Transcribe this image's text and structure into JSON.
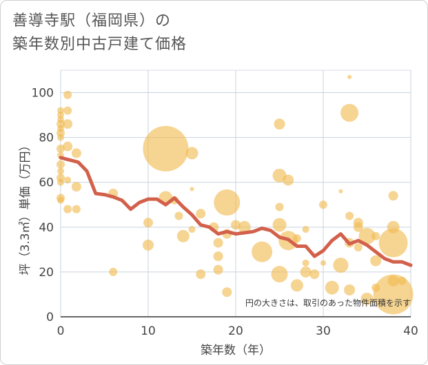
{
  "header": {
    "title_line1": "善導寺駅（福岡県）の",
    "title_line2": "築年数別中古戸建て価格"
  },
  "chart_data": {
    "type": "scatter",
    "title": "善導寺駅（福岡県）の築年数別中古戸建て価格",
    "xlabel": "築年数（年）",
    "ylabel": "坪（3.3㎡）単価（万円）",
    "xlim": [
      0,
      40
    ],
    "ylim": [
      0,
      110
    ],
    "xticks": [
      0,
      10,
      20,
      30,
      40
    ],
    "yticks": [
      0,
      20,
      40,
      60,
      80,
      100
    ],
    "grid": true,
    "annotation": "円の大きさは、取引のあった物件面積を示す",
    "colors": {
      "bubble": "#f1b94f",
      "trend": "#d2604b"
    },
    "bubbles": [
      {
        "x": 0,
        "y": 92,
        "s": 5
      },
      {
        "x": 0,
        "y": 90,
        "s": 5
      },
      {
        "x": 0,
        "y": 88,
        "s": 5
      },
      {
        "x": 0,
        "y": 86,
        "s": 6
      },
      {
        "x": 0,
        "y": 84,
        "s": 5
      },
      {
        "x": 0,
        "y": 82,
        "s": 6
      },
      {
        "x": 0,
        "y": 80,
        "s": 5
      },
      {
        "x": 0,
        "y": 75,
        "s": 6
      },
      {
        "x": 0,
        "y": 72,
        "s": 5
      },
      {
        "x": 0,
        "y": 68,
        "s": 6
      },
      {
        "x": 0,
        "y": 65,
        "s": 5
      },
      {
        "x": 0,
        "y": 62,
        "s": 6
      },
      {
        "x": 0,
        "y": 60,
        "s": 5
      },
      {
        "x": 0,
        "y": 53,
        "s": 6
      },
      {
        "x": 0,
        "y": 52,
        "s": 5
      },
      {
        "x": 0.8,
        "y": 99,
        "s": 6
      },
      {
        "x": 0.8,
        "y": 92,
        "s": 6
      },
      {
        "x": 0.8,
        "y": 86,
        "s": 7
      },
      {
        "x": 0.8,
        "y": 76,
        "s": 7
      },
      {
        "x": 0.8,
        "y": 61,
        "s": 5
      },
      {
        "x": 0.8,
        "y": 48,
        "s": 6
      },
      {
        "x": 1.8,
        "y": 73,
        "s": 7
      },
      {
        "x": 1.8,
        "y": 58,
        "s": 7
      },
      {
        "x": 1.8,
        "y": 48,
        "s": 6
      },
      {
        "x": 6,
        "y": 55,
        "s": 7
      },
      {
        "x": 6,
        "y": 20,
        "s": 6
      },
      {
        "x": 10,
        "y": 42,
        "s": 7
      },
      {
        "x": 10,
        "y": 32,
        "s": 8
      },
      {
        "x": 12,
        "y": 75,
        "s": 33
      },
      {
        "x": 12,
        "y": 53,
        "s": 10
      },
      {
        "x": 13,
        "y": 52,
        "s": 6
      },
      {
        "x": 13.5,
        "y": 45,
        "s": 6
      },
      {
        "x": 14,
        "y": 36,
        "s": 9
      },
      {
        "x": 15,
        "y": 73,
        "s": 9
      },
      {
        "x": 15,
        "y": 57,
        "s": 3
      },
      {
        "x": 15,
        "y": 39,
        "s": 5
      },
      {
        "x": 16,
        "y": 46,
        "s": 7
      },
      {
        "x": 16,
        "y": 19,
        "s": 7
      },
      {
        "x": 17.5,
        "y": 40,
        "s": 7
      },
      {
        "x": 18,
        "y": 33,
        "s": 7
      },
      {
        "x": 18,
        "y": 27,
        "s": 7
      },
      {
        "x": 18,
        "y": 21,
        "s": 7
      },
      {
        "x": 19,
        "y": 51,
        "s": 19
      },
      {
        "x": 19,
        "y": 37,
        "s": 7
      },
      {
        "x": 19,
        "y": 11,
        "s": 7
      },
      {
        "x": 20,
        "y": 41,
        "s": 7
      },
      {
        "x": 21,
        "y": 40,
        "s": 9
      },
      {
        "x": 23,
        "y": 29,
        "s": 15
      },
      {
        "x": 25,
        "y": 86,
        "s": 8
      },
      {
        "x": 25,
        "y": 63,
        "s": 10
      },
      {
        "x": 25,
        "y": 49,
        "s": 6
      },
      {
        "x": 25,
        "y": 41,
        "s": 10
      },
      {
        "x": 25,
        "y": 19,
        "s": 12
      },
      {
        "x": 26,
        "y": 61,
        "s": 8
      },
      {
        "x": 26,
        "y": 34,
        "s": 14
      },
      {
        "x": 27,
        "y": 35,
        "s": 6
      },
      {
        "x": 27,
        "y": 14,
        "s": 9
      },
      {
        "x": 28,
        "y": 39,
        "s": 5
      },
      {
        "x": 28,
        "y": 24,
        "s": 5
      },
      {
        "x": 28,
        "y": 20,
        "s": 8
      },
      {
        "x": 29,
        "y": 19,
        "s": 7
      },
      {
        "x": 30,
        "y": 50,
        "s": 6
      },
      {
        "x": 30,
        "y": 24,
        "s": 4
      },
      {
        "x": 31,
        "y": 13,
        "s": 10
      },
      {
        "x": 32,
        "y": 56,
        "s": 3
      },
      {
        "x": 32,
        "y": 23,
        "s": 11
      },
      {
        "x": 33,
        "y": 107,
        "s": 3
      },
      {
        "x": 33,
        "y": 91,
        "s": 13
      },
      {
        "x": 33,
        "y": 45,
        "s": 6
      },
      {
        "x": 33,
        "y": 33,
        "s": 7
      },
      {
        "x": 33,
        "y": 12,
        "s": 8
      },
      {
        "x": 34,
        "y": 42,
        "s": 7
      },
      {
        "x": 34,
        "y": 40,
        "s": 7
      },
      {
        "x": 34,
        "y": 31,
        "s": 6
      },
      {
        "x": 35,
        "y": 36,
        "s": 12
      },
      {
        "x": 35,
        "y": 8,
        "s": 9
      },
      {
        "x": 36,
        "y": 36,
        "s": 6
      },
      {
        "x": 36,
        "y": 25,
        "s": 8
      },
      {
        "x": 36,
        "y": 13,
        "s": 6
      },
      {
        "x": 38,
        "y": 54,
        "s": 7
      },
      {
        "x": 38,
        "y": 40,
        "s": 9
      },
      {
        "x": 38,
        "y": 33,
        "s": 21
      },
      {
        "x": 38,
        "y": 16,
        "s": 8
      },
      {
        "x": 38,
        "y": 10,
        "s": 29
      },
      {
        "x": 39,
        "y": 16,
        "s": 6
      }
    ],
    "trend": {
      "x": [
        0,
        1,
        2,
        3,
        4,
        5,
        6,
        7,
        8,
        9,
        10,
        11,
        12,
        13,
        14,
        15,
        16,
        17,
        18,
        19,
        20,
        21,
        22,
        23,
        24,
        25,
        26,
        27,
        28,
        29,
        30,
        31,
        32,
        33,
        34,
        35,
        36,
        37,
        38,
        39,
        40
      ],
      "y": [
        71,
        70,
        69,
        65,
        55,
        54.5,
        53.5,
        52,
        48,
        51,
        52.5,
        52.5,
        50,
        53,
        49,
        45.5,
        41,
        40,
        37,
        38,
        37,
        37.5,
        38,
        39.5,
        38.5,
        35.5,
        34.5,
        31.5,
        31.5,
        27,
        29.5,
        34,
        37,
        32.5,
        34,
        32,
        29,
        26,
        24.5,
        24.5,
        23
      ]
    }
  }
}
